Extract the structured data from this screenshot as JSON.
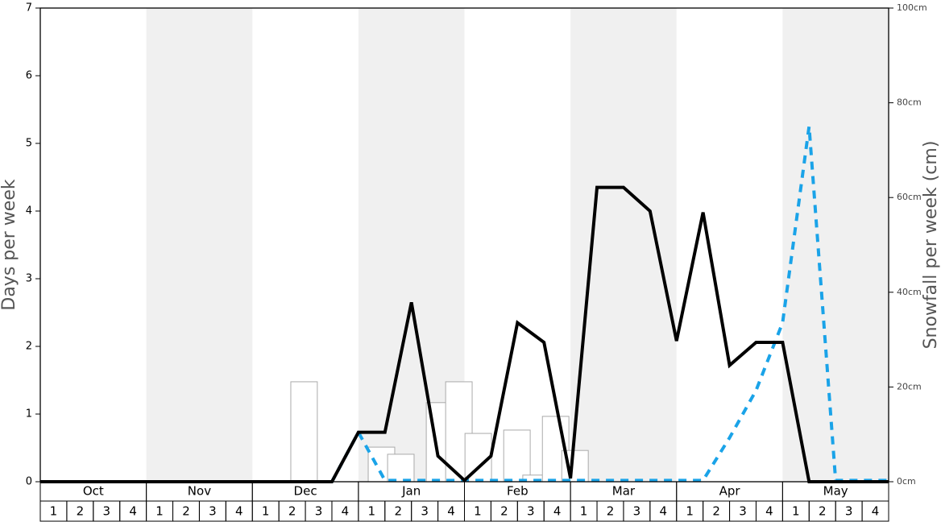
{
  "chart_data": {
    "type": "line",
    "ylabel": "Days per week",
    "y2label": "Snowfall per week (cm)",
    "ylim": [
      0,
      7
    ],
    "yticks": [
      0,
      1,
      2,
      3,
      4,
      5,
      6,
      7
    ],
    "y2lim": [
      0,
      100
    ],
    "y2ticks": [
      {
        "value": 0,
        "label": "0cm"
      },
      {
        "value": 20,
        "label": "20cm"
      },
      {
        "value": 40,
        "label": "40cm"
      },
      {
        "value": 60,
        "label": "60cm"
      },
      {
        "value": 80,
        "label": "80cm"
      },
      {
        "value": 100,
        "label": "100cm"
      }
    ],
    "xlim": [
      0,
      32
    ],
    "months": [
      "Oct",
      "Nov",
      "Dec",
      "Jan",
      "Feb",
      "Mar",
      "Apr",
      "May"
    ],
    "weeks": [
      "1",
      "2",
      "3",
      "4"
    ],
    "x": [
      0,
      1,
      2,
      3,
      4,
      5,
      6,
      7,
      8,
      9,
      10,
      11,
      12,
      13,
      14,
      15,
      16,
      17,
      18,
      19,
      20,
      21,
      22,
      23,
      24,
      25,
      26,
      27,
      28,
      29,
      30,
      31,
      32
    ],
    "series": [
      {
        "color": "#000000",
        "dashed": false,
        "values": [
          0,
          0,
          0,
          0,
          0,
          0,
          0,
          0,
          0,
          0,
          0,
          0,
          0.73,
          0.73,
          2.65,
          0.38,
          0.02,
          0.38,
          2.35,
          2.06,
          0.05,
          4.35,
          4.35,
          4.0,
          2.08,
          3.98,
          1.72,
          2.06,
          2.06,
          0,
          0,
          0,
          0
        ]
      },
      {
        "color": "#1aa3e8",
        "dashed": true,
        "values": [
          0,
          0,
          0,
          0,
          0,
          0,
          0,
          0,
          0,
          0,
          0,
          0,
          0.73,
          0.02,
          0.02,
          0.02,
          0.02,
          0.02,
          0.02,
          0.02,
          0.02,
          0.02,
          0.02,
          0.02,
          0.02,
          0.02,
          0.65,
          1.35,
          2.35,
          5.25,
          0.02,
          0.02,
          0.02
        ]
      }
    ],
    "bars": {
      "type": "bar",
      "axis": "y2",
      "color": "#aaaaaa",
      "x": [
        9.45,
        12.37,
        13.1,
        14.56,
        15.29,
        16.02,
        17.48,
        18.2,
        18.94,
        19.67
      ],
      "values": [
        21.1,
        7.3,
        5.8,
        16.7,
        21.1,
        10.2,
        10.9,
        1.4,
        13.8,
        6.6
      ]
    }
  }
}
